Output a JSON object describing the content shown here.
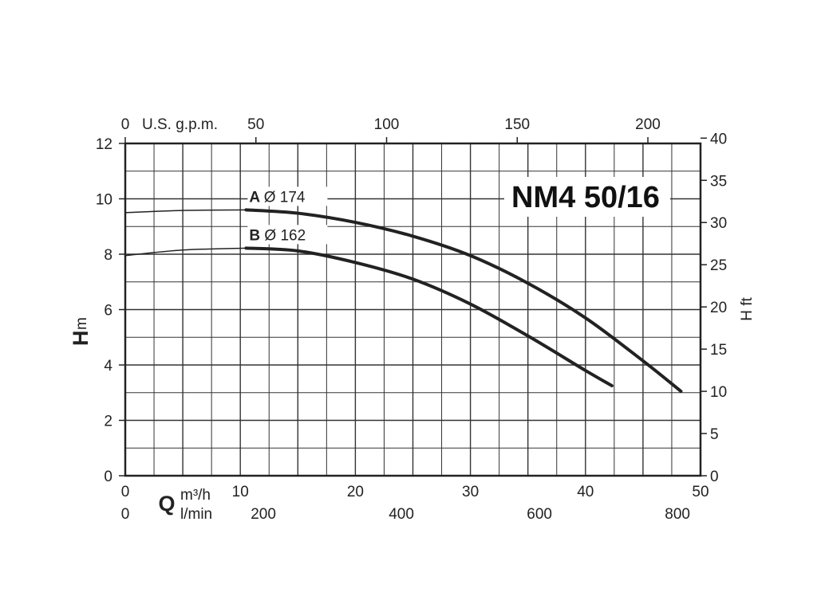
{
  "chart_data": {
    "type": "line",
    "title": "NM4 50/16",
    "xlabel_symbol": "Q",
    "xlabel_unit_primary": "m³/h",
    "xlabel_unit_secondary": "l/min",
    "xlabel_unit_top": "U.S. g.p.m.",
    "ylabel_symbol": "H",
    "ylabel_unit": "m",
    "ylabel_right": "H ft",
    "xlim": [
      0,
      50
    ],
    "ylim": [
      0,
      12
    ],
    "grid": true,
    "x_ticks_primary": [
      "0",
      "10",
      "20",
      "30",
      "40",
      "50"
    ],
    "x_ticks_secondary": [
      "0",
      "200",
      "400",
      "600",
      "800"
    ],
    "x_ticks_top": [
      "0",
      "50",
      "100",
      "150",
      "200"
    ],
    "y_ticks_left": [
      "0",
      "2",
      "4",
      "6",
      "8",
      "10",
      "12"
    ],
    "y_ticks_right": [
      "0",
      "5",
      "10",
      "15",
      "20",
      "25",
      "30",
      "35",
      "40"
    ],
    "series": [
      {
        "name": "A",
        "label": "Ø 174",
        "x": [
          0,
          5,
          10.5,
          15,
          20,
          25,
          30,
          35,
          40,
          45,
          48.3
        ],
        "y": [
          9.5,
          9.58,
          9.6,
          9.48,
          9.15,
          8.65,
          7.95,
          6.95,
          5.7,
          4.15,
          3.05
        ]
      },
      {
        "name": "B",
        "label": "Ø 162",
        "x": [
          0,
          5,
          10.5,
          15,
          20,
          25,
          30,
          35,
          40,
          42.3
        ],
        "y": [
          7.95,
          8.15,
          8.22,
          8.12,
          7.7,
          7.1,
          6.2,
          5.05,
          3.8,
          3.25
        ]
      }
    ]
  }
}
